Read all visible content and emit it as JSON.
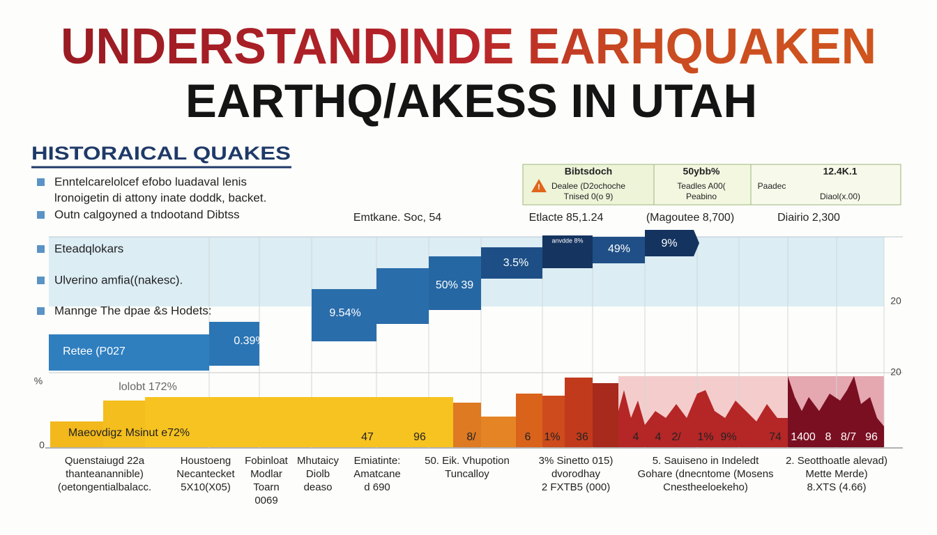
{
  "header": {
    "title_line_1": "UNDERSTANDINDE EARHQUAKEN",
    "title_line_2": "EARTHQ/AKESS IN UTAH"
  },
  "sidebar": {
    "heading": "HISTORAICAL QUAKES",
    "items": [
      "Enntelcarelolcef efobo luadaval lenis",
      "lronoigetin di attony inate doddk, backet.",
      "Outn calgoyned a tndootand Dibtss",
      "Eteadqlokars",
      "Ulverino amfia((nakesc).",
      "Mannge The dpae &s Hodets:"
    ]
  },
  "legend": {
    "cells": [
      [
        "Bibtsdoch",
        "Dealee (D2ochoche",
        "Tnised 0(o 9)"
      ],
      [
        "50ybb%",
        "Teadles A00(",
        "Peabino"
      ],
      [
        "12.4K.1",
        "Paadec",
        "Diaol(x.00)"
      ]
    ]
  },
  "chart": {
    "top_labels": [
      "Emtkane. Soc, 54",
      "Etlacte 85,1.24",
      "(Magoutee 8,700)",
      "Diairio 2,300"
    ],
    "step_labels": [
      "Retee (P027",
      "0.39%",
      "9.54%",
      "50% 39",
      "3.5%",
      "anvdde 8%",
      "49%",
      "9%"
    ],
    "yellow_labels": [
      "lolobt 172%",
      "Maeovdigz Msinut e72%"
    ],
    "value_labels": [
      "47",
      "96",
      "8/",
      "6",
      "1%",
      "36",
      "4",
      "4",
      "2/",
      "1%",
      "9%",
      "74",
      "1400",
      "8",
      "8/7",
      "96"
    ],
    "axis_labels": [
      "20",
      "20",
      "%",
      "0"
    ]
  },
  "columns": [
    [
      "Quenstaiugd 22a",
      "thanteanannible)",
      "(oetongentialbalacc."
    ],
    [
      "Houstoeng",
      "Necantecket",
      "5X10(X05)"
    ],
    [
      "Fobinloat",
      "Modlar",
      "Toarn",
      "0069"
    ],
    [
      "Mhutaicy",
      "Diolb",
      "deaso"
    ],
    [
      "Emiatinte:",
      "Amatcane",
      "d 690"
    ],
    [
      "50. Eik. Vhupotion",
      "Tuncalloy"
    ],
    [
      "3% Sinetto 015)",
      "dvorodhay",
      "2 FXTB5 (000)"
    ],
    [
      "5. Sauiseno in Indeledt",
      "Gohare (dnecntome (Mosens",
      "Cnestheeloekeho)"
    ],
    [
      "2. Seotthoatle alevad)",
      "Mette Merde)",
      "8.XTS (4.66)"
    ]
  ]
}
